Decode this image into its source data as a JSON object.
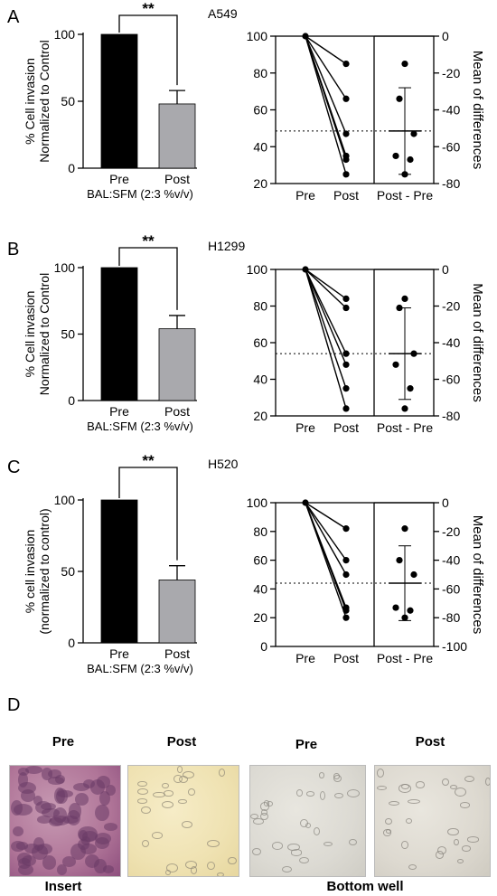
{
  "panels": [
    {
      "letter": "A",
      "cell_line": "A549",
      "bar_chart": {
        "type": "bar",
        "ylabel_line1": "% Cell invasion",
        "ylabel_line2": "Normalized to Control",
        "categories": [
          "Pre",
          "Post"
        ],
        "values": [
          100,
          48
        ],
        "errors": [
          0,
          10
        ],
        "colors": [
          "#000000",
          "#a9a9ad"
        ],
        "yticks": [
          "0",
          "50",
          "100"
        ],
        "ylim": [
          0,
          100
        ],
        "xlabel": "BAL:SFM (2:3 %v/v)",
        "significance": "**"
      },
      "paired_chart": {
        "type": "scatter",
        "categories": [
          "Pre",
          "Post",
          "Post - Pre"
        ],
        "yticks_left": [
          "20",
          "40",
          "60",
          "80",
          "100"
        ],
        "ylim_left": [
          20,
          100
        ],
        "yticks_right": [
          "0",
          "-20",
          "-40",
          "-60",
          "-80"
        ],
        "ylim_right": [
          -80,
          0
        ],
        "right_label": "Mean of differences",
        "pairs": [
          [
            100,
            85
          ],
          [
            100,
            66
          ],
          [
            100,
            47
          ],
          [
            100,
            35
          ],
          [
            100,
            33
          ],
          [
            100,
            25
          ]
        ],
        "differences": [
          -15,
          -34,
          -53,
          -65,
          -67,
          -75
        ],
        "mean_difference": -51.5,
        "diff_sd": [
          -75,
          -28
        ]
      }
    },
    {
      "letter": "B",
      "cell_line": "H1299",
      "bar_chart": {
        "type": "bar",
        "ylabel_line1": "% Cell invasion",
        "ylabel_line2": "Normalized to Control",
        "categories": [
          "Pre",
          "Post"
        ],
        "values": [
          100,
          54
        ],
        "errors": [
          0,
          10
        ],
        "colors": [
          "#000000",
          "#a9a9ad"
        ],
        "yticks": [
          "0",
          "50",
          "100"
        ],
        "ylim": [
          0,
          100
        ],
        "xlabel": "BAL:SFM (2:3 %v/v)",
        "significance": "**"
      },
      "paired_chart": {
        "type": "scatter",
        "categories": [
          "Pre",
          "Post",
          "Post - Pre"
        ],
        "yticks_left": [
          "20",
          "40",
          "60",
          "80",
          "100"
        ],
        "ylim_left": [
          20,
          100
        ],
        "yticks_right": [
          "0",
          "-20",
          "-40",
          "-60",
          "-80"
        ],
        "ylim_right": [
          -80,
          0
        ],
        "right_label": "Mean of differences",
        "pairs": [
          [
            100,
            84
          ],
          [
            100,
            79
          ],
          [
            100,
            54
          ],
          [
            100,
            48
          ],
          [
            100,
            35
          ],
          [
            100,
            24
          ]
        ],
        "differences": [
          -16,
          -21,
          -46,
          -52,
          -65,
          -76
        ],
        "mean_difference": -46,
        "diff_sd": [
          -71,
          -21
        ]
      }
    },
    {
      "letter": "C",
      "cell_line": "H520",
      "bar_chart": {
        "type": "bar",
        "ylabel_line1": "% cell invasion",
        "ylabel_line2": "(normalized to control)",
        "categories": [
          "Pre",
          "Post"
        ],
        "values": [
          100,
          44
        ],
        "errors": [
          0,
          10
        ],
        "colors": [
          "#000000",
          "#a9a9ad"
        ],
        "yticks": [
          "0",
          "50",
          "100"
        ],
        "ylim": [
          0,
          100
        ],
        "xlabel": "BAL:SFM (2:3 %v/v)",
        "significance": "**"
      },
      "paired_chart": {
        "type": "scatter",
        "categories": [
          "Pre",
          "Post",
          "Post - Pre"
        ],
        "yticks_left": [
          "0",
          "20",
          "40",
          "60",
          "80",
          "100"
        ],
        "ylim_left": [
          0,
          100
        ],
        "yticks_right": [
          "0",
          "-20",
          "-40",
          "-60",
          "-80",
          "-100"
        ],
        "ylim_right": [
          -100,
          0
        ],
        "right_label": "Mean of differences",
        "pairs": [
          [
            100,
            82
          ],
          [
            100,
            60
          ],
          [
            100,
            50
          ],
          [
            100,
            27
          ],
          [
            100,
            25
          ],
          [
            100,
            20
          ]
        ],
        "differences": [
          -18,
          -40,
          -50,
          -73,
          -75,
          -80
        ],
        "mean_difference": -56,
        "diff_sd": [
          -82,
          -30
        ]
      }
    }
  ],
  "panel_d": {
    "letter": "D",
    "images": [
      {
        "title": "Pre",
        "colors": [
          "#b07598",
          "#8e4f7e",
          "#c79ab3",
          "#6a3a66"
        ]
      },
      {
        "title": "Post",
        "colors": [
          "#efe2b2",
          "#e7d79f",
          "#f6ecc7",
          "#8f8776"
        ]
      },
      {
        "title": "Pre",
        "colors": [
          "#dcdad3",
          "#cfcdc5",
          "#e8e6df",
          "#8a8880"
        ]
      },
      {
        "title": "Post",
        "colors": [
          "#ddd9d0",
          "#cfcbc1",
          "#e9e6de",
          "#86827a"
        ]
      }
    ],
    "group_labels": [
      "Insert",
      "Bottom well"
    ]
  }
}
